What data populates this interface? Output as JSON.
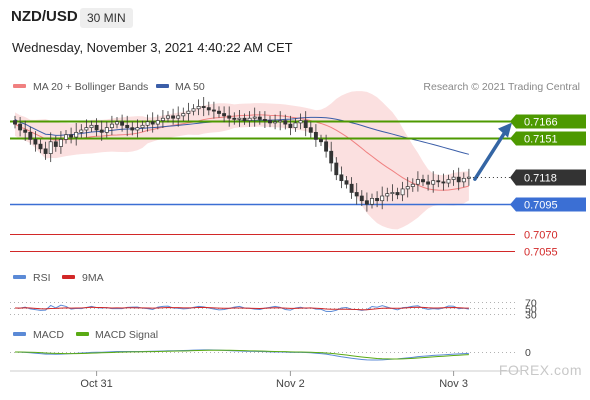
{
  "header": {
    "symbol": "NZD/USD",
    "timeframe": "30 MIN",
    "datetime": "Wednesday, November 3, 2021 4:40:22 AM CET"
  },
  "watermark": "Research © 2021 Trading Central",
  "logo_text": "FOREX.com",
  "colors": {
    "ma20": "#f08080",
    "bollinger_fill": "#fbe0e0",
    "ma50": "#3b5ea8",
    "support_resistance_green": "#4d9900",
    "support_blue": "#3b6fd4",
    "level_red": "#d22828",
    "arrow": "#3465a4",
    "rsi": "#5b8ad6",
    "rsi_ma": "#d22828",
    "macd": "#5b8ad6",
    "macd_signal": "#5aaa14",
    "current_price_bg": "#333333"
  },
  "chart_data": [
    {
      "type": "candlestick",
      "name": "price",
      "legend": [
        {
          "label": "MA 20 + Bollinger Bands",
          "color": "#f08080"
        },
        {
          "label": "MA 50",
          "color": "#3b5ea8"
        }
      ],
      "x_ticks": [
        "Oct 31",
        "Nov 2",
        "Nov 3"
      ],
      "ylim": [
        0.7046,
        0.7186
      ],
      "current_price": "0.7118",
      "levels": [
        {
          "value": 0.7166,
          "label": "0.7166",
          "kind": "resistance",
          "color": "#4d9900"
        },
        {
          "value": 0.7151,
          "label": "0.7151",
          "kind": "resistance",
          "color": "#4d9900"
        },
        {
          "value": 0.7095,
          "label": "0.7095",
          "kind": "support",
          "color": "#3b6fd4"
        },
        {
          "value": 0.707,
          "label": "0.7070",
          "kind": "support",
          "color": "#d22828"
        },
        {
          "value": 0.7055,
          "label": "0.7055",
          "kind": "support",
          "color": "#d22828"
        }
      ],
      "forecast_arrow": {
        "from": 0.7118,
        "to": 0.7166
      },
      "close_series": [
        0.7163,
        0.7158,
        0.7156,
        0.715,
        0.7146,
        0.7142,
        0.7138,
        0.7148,
        0.7144,
        0.715,
        0.7154,
        0.7152,
        0.7156,
        0.7158,
        0.716,
        0.7162,
        0.7158,
        0.7156,
        0.716,
        0.7163,
        0.7165,
        0.7162,
        0.716,
        0.7158,
        0.716,
        0.7162,
        0.7165,
        0.7163,
        0.7166,
        0.7168,
        0.717,
        0.7168,
        0.717,
        0.7172,
        0.7174,
        0.7176,
        0.7178,
        0.7177,
        0.7175,
        0.7174,
        0.7172,
        0.717,
        0.7168,
        0.7167,
        0.7168,
        0.7166,
        0.7168,
        0.7169,
        0.7167,
        0.7166,
        0.7164,
        0.7165,
        0.7166,
        0.7163,
        0.716,
        0.7164,
        0.7166,
        0.716,
        0.7156,
        0.715,
        0.7148,
        0.714,
        0.713,
        0.712,
        0.7115,
        0.7112,
        0.7105,
        0.7102,
        0.7098,
        0.7095,
        0.71,
        0.7098,
        0.7102,
        0.7104,
        0.7105,
        0.7103,
        0.7108,
        0.711,
        0.7112,
        0.7116,
        0.7114,
        0.7112,
        0.7115,
        0.7114,
        0.7113,
        0.7116,
        0.7118,
        0.7114,
        0.7117,
        0.7118
      ]
    },
    {
      "type": "line",
      "name": "rsi",
      "legend": [
        {
          "label": "RSI",
          "color": "#5b8ad6"
        },
        {
          "label": "9MA",
          "color": "#d22828"
        }
      ],
      "y_ticks": [
        "70",
        "50",
        "30"
      ],
      "ylim": [
        0,
        100
      ]
    },
    {
      "type": "line",
      "name": "macd",
      "legend": [
        {
          "label": "MACD",
          "color": "#5b8ad6"
        },
        {
          "label": "MACD Signal",
          "color": "#5aaa14"
        }
      ],
      "y_ticks": [
        "0"
      ]
    }
  ]
}
